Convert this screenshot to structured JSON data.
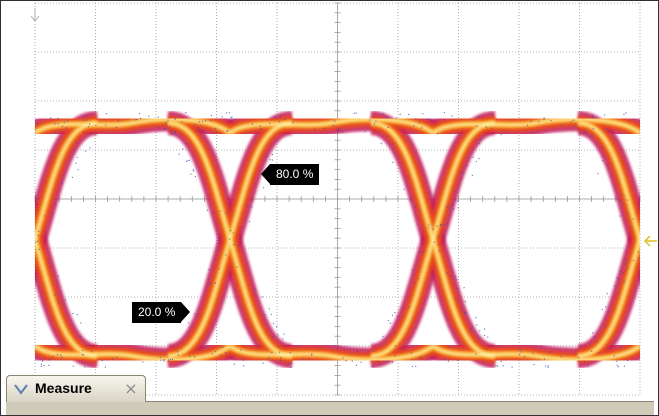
{
  "scope": {
    "grid": {
      "divisions_x": 10,
      "divisions_y": 8,
      "minor_ticks_per_division": 5
    },
    "colors": {
      "background": "#ffffff",
      "grid": "#9a9a9a",
      "trace_outer": "#c2185b",
      "trace_mid": "#e8491d",
      "trace_hot": "#f9a825",
      "trace_core": "#fff4b0",
      "speckle": "#3a4fb8",
      "trigger_marker": "#e0c020"
    },
    "top_marker_icon": "ground-arrow-icon",
    "right_marker_icon": "trigger-level-icon"
  },
  "markers": {
    "upper_label": "80.0 %",
    "lower_label": "20.0 %"
  },
  "measure_tab": {
    "label": "Measure",
    "close_glyph": "×",
    "expand_icon": "chevron-down-icon",
    "close_icon": "close-icon"
  }
}
